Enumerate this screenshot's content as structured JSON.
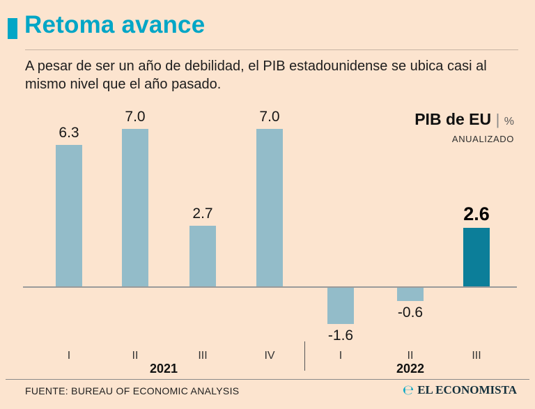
{
  "header": {
    "title": "Retoma avance",
    "subtitle": "A pesar de ser un año de debilidad, el PIB estadounidense se ubica casi al mismo nivel que el año pasado."
  },
  "legend": {
    "title": "PIB de EU",
    "separator": "|",
    "unit": "%",
    "note": "ANUALIZADO"
  },
  "chart_data": {
    "type": "bar",
    "title": "PIB de EU | % ANUALIZADO",
    "xlabel": "",
    "ylabel": "",
    "categories": [
      "I",
      "II",
      "III",
      "IV",
      "I",
      "II",
      "III"
    ],
    "values": [
      6.3,
      7.0,
      2.7,
      7.0,
      -1.6,
      -0.6,
      2.6
    ],
    "value_labels": [
      "6.3",
      "7.0",
      "2.7",
      "7.0",
      "-1.6",
      "-0.6",
      "2.6"
    ],
    "year_groups": [
      {
        "label": "2021",
        "start_index": 0,
        "end_index": 3
      },
      {
        "label": "2022",
        "start_index": 4,
        "end_index": 6
      }
    ],
    "highlight_index": 6,
    "ylim": [
      -2,
      7.5
    ],
    "grid": false,
    "legend_position": "top-right",
    "bar_color": "#93bcc9",
    "highlight_color": "#0c7e99"
  },
  "footer": {
    "source": "FUENTE: BUREAU OF ECONOMIC ANALYSIS",
    "brand": "EL ECONOMISTA"
  },
  "colors": {
    "background": "#fce4cf",
    "accent": "#00a6c6",
    "bar": "#93bcc9",
    "bar_highlight": "#0c7e99",
    "text": "#1d1d1d"
  }
}
